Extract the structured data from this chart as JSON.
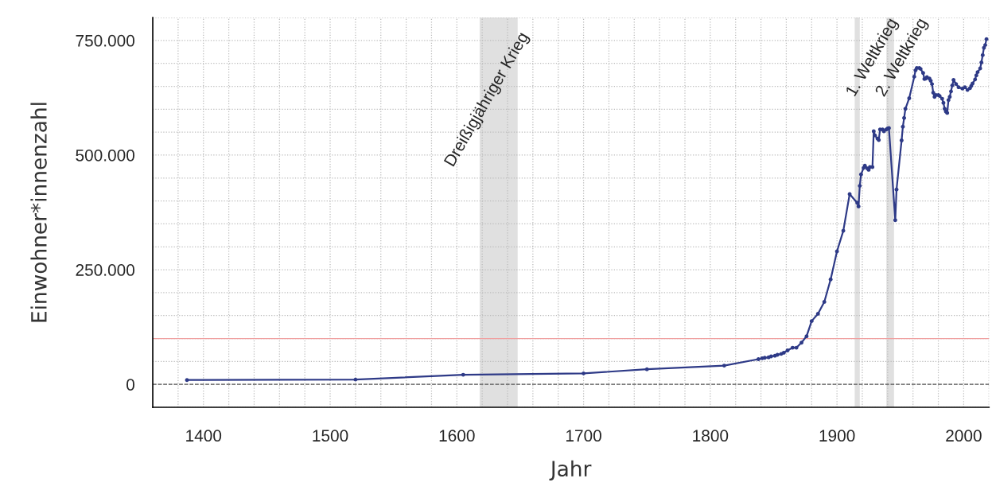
{
  "chart_data": {
    "type": "line",
    "xlabel": "Jahr",
    "ylabel": "Einwohner*innenzahl",
    "x": [
      1387,
      1520,
      1605,
      1700,
      1750,
      1811,
      1838,
      1841,
      1843,
      1846,
      1848,
      1851,
      1853,
      1856,
      1858,
      1861,
      1865,
      1868,
      1872,
      1876,
      1880,
      1885,
      1890,
      1895,
      1900,
      1905,
      1910,
      1916,
      1917,
      1918,
      1919,
      1921,
      1922,
      1924,
      1925,
      1926,
      1928,
      1929,
      1930,
      1932,
      1933,
      1934,
      1936,
      1937,
      1939,
      1940,
      1941,
      1946,
      1947,
      1951,
      1952,
      1953,
      1954,
      1957,
      1961,
      1962,
      1963,
      1965,
      1966,
      1968,
      1969,
      1970,
      1971,
      1973,
      1974,
      1975,
      1976,
      1977,
      1978,
      1980,
      1981,
      1983,
      1984,
      1985,
      1986,
      1987,
      1988,
      1989,
      1990,
      1991,
      1992,
      1994,
      1996,
      1999,
      2001,
      2003,
      2005,
      2006,
      2007,
      2009,
      2010,
      2011,
      2013,
      2014,
      2015,
      2016,
      2017,
      2018
    ],
    "series": [
      {
        "color": "#2e3a87",
        "values": [
          9500,
          10500,
          21000,
          24000,
          33000,
          41000,
          55000,
          57000,
          58000,
          59000,
          61000,
          62500,
          64500,
          66500,
          69000,
          74000,
          80000,
          80000,
          91000,
          105000,
          138000,
          154000,
          180000,
          229000,
          290000,
          335000,
          415000,
          396000,
          388000,
          433000,
          458000,
          472000,
          477000,
          471000,
          468000,
          474000,
          474000,
          552000,
          543000,
          536000,
          533000,
          556000,
          556000,
          552000,
          556000,
          558000,
          559000,
          358000,
          425000,
          532000,
          562000,
          581000,
          601000,
          624000,
          671000,
          685000,
          690000,
          690000,
          688000,
          679000,
          666000,
          667000,
          670000,
          667000,
          662000,
          655000,
          636000,
          627000,
          631000,
          631000,
          629000,
          623000,
          614000,
          601000,
          595000,
          592000,
          620000,
          627000,
          639000,
          652000,
          664000,
          655000,
          648000,
          645000,
          648000,
          642000,
          646000,
          651000,
          656000,
          665000,
          674000,
          681000,
          689000,
          702000,
          718000,
          734000,
          740000,
          753000
        ]
      }
    ],
    "marker": "circle",
    "line_style": "solid",
    "grid": true,
    "legend": false,
    "xlim": [
      1360,
      2020
    ],
    "ylim": [
      -50000,
      800000
    ],
    "xticks": [
      {
        "value": 1380,
        "label": null
      },
      1400,
      {
        "value": 1420,
        "label": null
      },
      {
        "value": 1440,
        "label": null
      },
      {
        "value": 1460,
        "label": null
      },
      {
        "value": 1480,
        "label": null
      },
      1500,
      {
        "value": 1520,
        "label": null
      },
      {
        "value": 1540,
        "label": null
      },
      {
        "value": 1560,
        "label": null
      },
      {
        "value": 1580,
        "label": null
      },
      1600,
      {
        "value": 1620,
        "label": null
      },
      {
        "value": 1640,
        "label": null
      },
      {
        "value": 1660,
        "label": null
      },
      {
        "value": 1680,
        "label": null
      },
      1700,
      {
        "value": 1720,
        "label": null
      },
      {
        "value": 1740,
        "label": null
      },
      {
        "value": 1760,
        "label": null
      },
      {
        "value": 1780,
        "label": null
      },
      1800,
      {
        "value": 1820,
        "label": null
      },
      {
        "value": 1840,
        "label": null
      },
      {
        "value": 1860,
        "label": null
      },
      {
        "value": 1880,
        "label": null
      },
      1900,
      {
        "value": 1920,
        "label": null
      },
      {
        "value": 1940,
        "label": null
      },
      {
        "value": 1960,
        "label": null
      },
      {
        "value": 1980,
        "label": null
      },
      2000,
      {
        "value": 2020,
        "label": null
      }
    ],
    "yticks": [
      {
        "value": -50000,
        "label": null
      },
      0,
      {
        "value": 50000,
        "label": null
      },
      {
        "value": 100000,
        "label": null
      },
      {
        "value": 150000,
        "label": null
      },
      {
        "value": 200000,
        "label": null
      },
      {
        "value": 250000,
        "label": "250.000"
      },
      {
        "value": 300000,
        "label": null
      },
      {
        "value": 350000,
        "label": null
      },
      {
        "value": 400000,
        "label": null
      },
      {
        "value": 450000,
        "label": null
      },
      {
        "value": 500000,
        "label": "500.000"
      },
      {
        "value": 550000,
        "label": null
      },
      {
        "value": 600000,
        "label": null
      },
      {
        "value": 650000,
        "label": null
      },
      {
        "value": 700000,
        "label": null
      },
      {
        "value": 750000,
        "label": "750.000"
      },
      {
        "value": 800000,
        "label": null
      }
    ],
    "bands": [
      {
        "axis": "x",
        "from": 1618,
        "to": 1648,
        "label": "Dreißigjähriger Krieg",
        "color": "#e0e0e0"
      },
      {
        "axis": "x",
        "from": 1914,
        "to": 1918,
        "label": "1. Weltkrieg",
        "color": "#e0e0e0"
      },
      {
        "axis": "x",
        "from": 1939,
        "to": 1945,
        "label": "2. Weltkrieg",
        "color": "#e0e0e0"
      }
    ],
    "ref_lines": [
      {
        "axis": "y",
        "value": 100000,
        "color": "#f0a0a0",
        "line_style": "solid"
      },
      {
        "axis": "y",
        "value": 0,
        "color": "#555555",
        "line_style": "dashed"
      }
    ]
  }
}
